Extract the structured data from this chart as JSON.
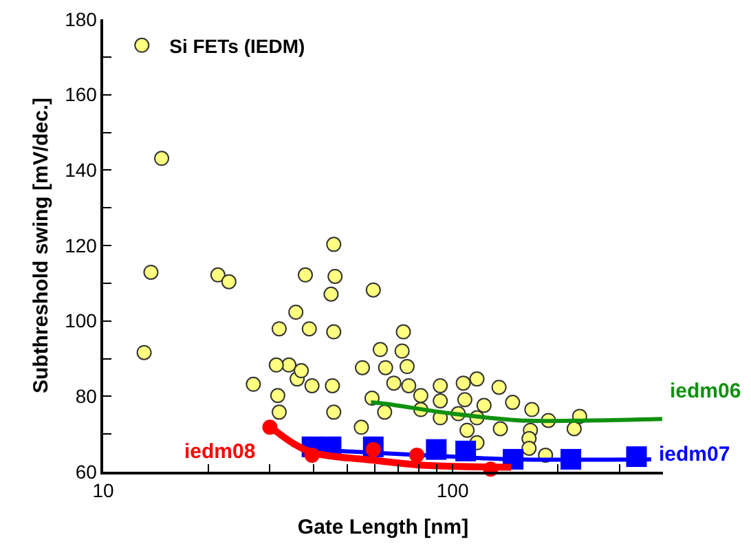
{
  "chart_data": {
    "type": "scatter",
    "xlabel": "Gate Length [nm]",
    "ylabel": "Subthreshold swing [mV/dec.]",
    "log": "x",
    "xlim": [
      10,
      400
    ],
    "ylim": [
      60,
      180
    ],
    "xticks": [
      10,
      {
        "value": 20,
        "label": null
      },
      {
        "value": 30,
        "label": null
      },
      {
        "value": 40,
        "label": null
      },
      {
        "value": 50,
        "label": null
      },
      {
        "value": 60,
        "label": null
      },
      {
        "value": 70,
        "label": null
      },
      {
        "value": 80,
        "label": null
      },
      {
        "value": 90,
        "label": null
      },
      100,
      {
        "value": 200,
        "label": null
      },
      {
        "value": 300,
        "label": null
      }
    ],
    "yticks": [
      60,
      {
        "value": 70,
        "label": null
      },
      80,
      {
        "value": 90,
        "label": null
      },
      100,
      {
        "value": 110,
        "label": null
      },
      120,
      {
        "value": 130,
        "label": null
      },
      140,
      {
        "value": 150,
        "label": null
      },
      160,
      {
        "value": 170,
        "label": null
      },
      180
    ],
    "grid": false,
    "legend": "top left",
    "series": [
      {
        "name": "Si FETs (IEDM)",
        "marker": "circle",
        "color": "#ffff80",
        "x": [
          13.7,
          13.1,
          14.7,
          21.3,
          22.9,
          26.9,
          31.9,
          35.6,
          34.0,
          31.3,
          35.9,
          36.9,
          38.9,
          31.6,
          31.9,
          39.6,
          37.9,
          45.7,
          46.1,
          44.9,
          45.7,
          45.3,
          45.7,
          55.2,
          54.8,
          59.3,
          62.1,
          64.3,
          67.9,
          58.8,
          63.9,
          72.3,
          71.7,
          74.1,
          74.9,
          81.1,
          81.1,
          92.2,
          92.2,
          92.2,
          103.8,
          107.3,
          108.4,
          117.4,
          117.4,
          110,
          117.4,
          123,
          135.8,
          137,
          148.5,
          168.6,
          167,
          165.5,
          165.5,
          184.5,
          188,
          222.8,
          231
        ],
        "values": [
          112.9,
          91.6,
          143.1,
          112.2,
          110.4,
          83.2,
          97.9,
          102.3,
          88.3,
          88.3,
          84.6,
          86.8,
          97.9,
          80.2,
          75.8,
          82.8,
          112.2,
          120.3,
          111.8,
          107.1,
          97.1,
          82.8,
          75.8,
          87.6,
          71.8,
          108.2,
          92.4,
          87.6,
          83.5,
          79.5,
          75.8,
          97.1,
          92,
          87.9,
          82.8,
          80.2,
          76.5,
          82.8,
          78.8,
          74.3,
          75.4,
          83.5,
          79.1,
          84.6,
          74.3,
          71,
          67.7,
          77.6,
          82.4,
          71.4,
          78.4,
          76.5,
          71,
          68.8,
          66.2,
          64.4,
          73.6,
          71.4,
          74.7
        ]
      },
      {
        "name": "iedm06",
        "type": "line",
        "color": "#109010",
        "x": [
          58.4,
          64.3,
          100,
          157,
          247,
          398
        ],
        "values": [
          78.4,
          78,
          75.4,
          73.6,
          73.6,
          74
        ]
      },
      {
        "type": "line",
        "color": "#0000ff",
        "x": [
          38,
          60,
          100,
          150,
          370
        ],
        "values": [
          66,
          65,
          64,
          63.3,
          63.3
        ]
      },
      {
        "name": "iedm07",
        "type": "scatter",
        "marker": "square",
        "color": "#0000ff",
        "x": [
          39.6,
          44.9,
          59.3,
          89.8,
          109,
          149,
          218,
          336
        ],
        "values": [
          66.6,
          66.6,
          66.6,
          65.9,
          65.5,
          63.3,
          63.3,
          64
        ]
      },
      {
        "type": "line",
        "color": "#ff0000",
        "x": [
          30,
          35,
          40,
          60,
          80,
          147
        ],
        "values": [
          72,
          67.5,
          65,
          63,
          61.8,
          61.2
        ]
      },
      {
        "name": "iedm08",
        "type": "scatter",
        "marker": "circle",
        "color": "#ff0000",
        "x": [
          30,
          39.6,
          59.3,
          79,
          128.5
        ],
        "values": [
          71.8,
          64.4,
          65.9,
          64.4,
          60.7
        ]
      }
    ]
  }
}
